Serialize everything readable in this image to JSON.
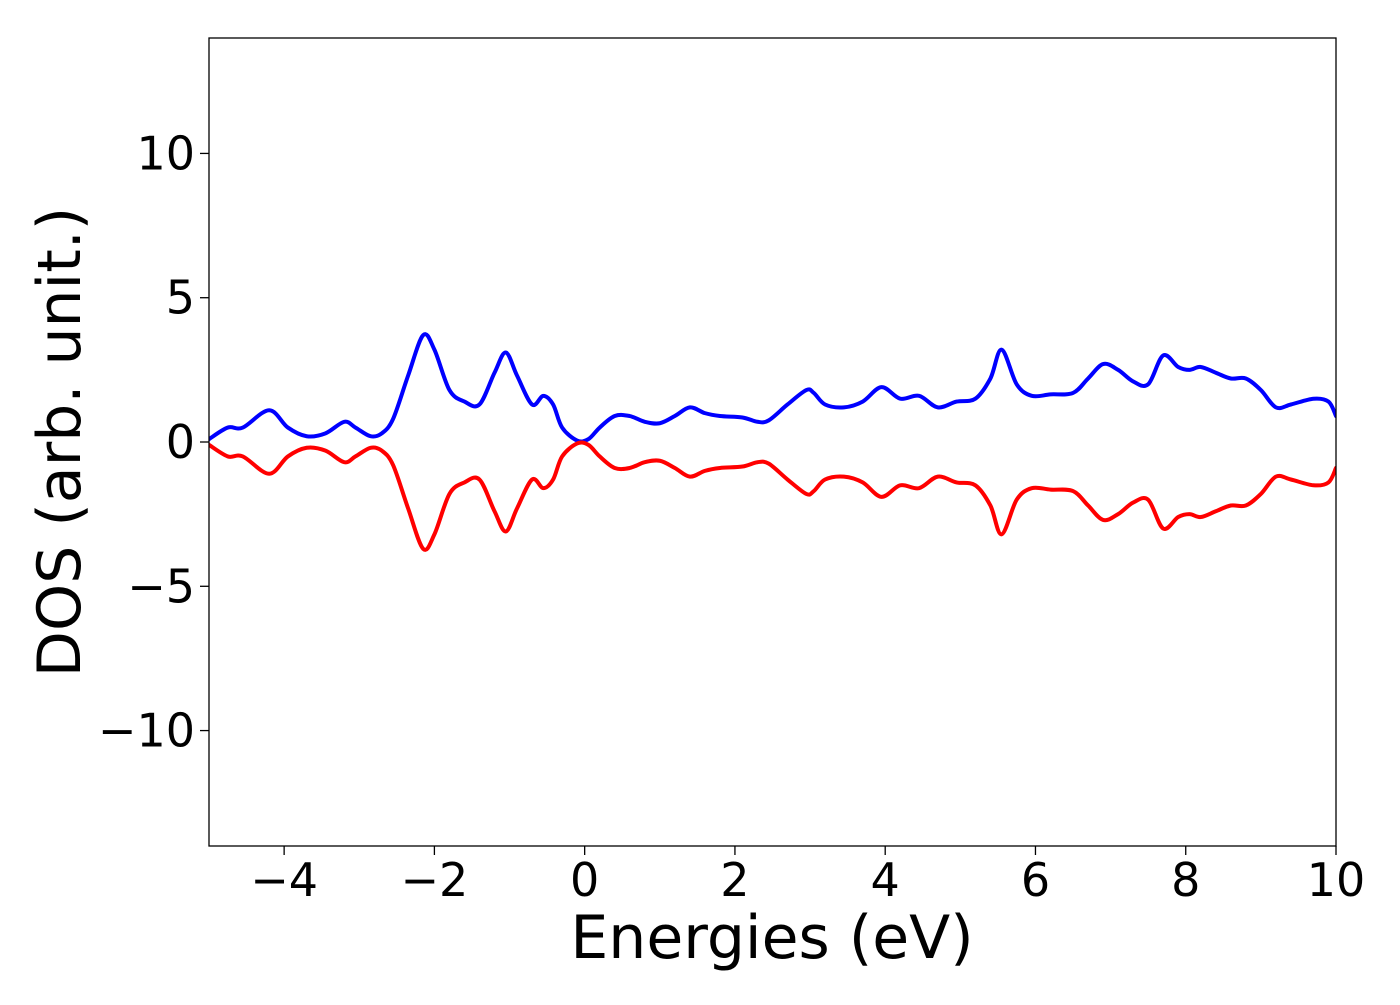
{
  "chart_data": {
    "type": "line",
    "title": "",
    "xlabel": "Energies (eV)",
    "ylabel": "DOS (arb. unit.)",
    "xlim": [
      -5,
      10
    ],
    "ylim": [
      -14,
      14
    ],
    "xticks": [
      -4,
      -2,
      0,
      2,
      4,
      6,
      8,
      10
    ],
    "xtick_labels": [
      "−4",
      "−2",
      "0",
      "2",
      "4",
      "6",
      "8",
      "10"
    ],
    "yticks": [
      -10,
      -5,
      0,
      5,
      10
    ],
    "ytick_labels": [
      "−10",
      "−5",
      "0",
      "5",
      "10"
    ],
    "grid": false,
    "legend": false,
    "series": [
      {
        "color": "#0000ff",
        "x": [
          -5.0,
          -4.75,
          -4.55,
          -4.2,
          -3.95,
          -3.7,
          -3.45,
          -3.2,
          -3.05,
          -2.85,
          -2.7,
          -2.55,
          -2.35,
          -2.15,
          -2.0,
          -1.8,
          -1.6,
          -1.4,
          -1.2,
          -1.05,
          -0.9,
          -0.7,
          -0.55,
          -0.42,
          -0.3,
          -0.1,
          0.05,
          0.2,
          0.4,
          0.6,
          0.8,
          1.0,
          1.2,
          1.4,
          1.6,
          1.8,
          2.1,
          2.3,
          2.45,
          2.7,
          2.95,
          3.05,
          3.2,
          3.45,
          3.7,
          3.95,
          4.2,
          4.45,
          4.7,
          4.95,
          5.2,
          5.4,
          5.55,
          5.75,
          5.95,
          6.2,
          6.5,
          6.7,
          6.9,
          7.1,
          7.3,
          7.5,
          7.7,
          7.9,
          8.05,
          8.2,
          8.4,
          8.6,
          8.8,
          9.0,
          9.2,
          9.4,
          9.7,
          9.9,
          10.0
        ],
        "y": [
          0.1,
          0.5,
          0.5,
          1.1,
          0.5,
          0.2,
          0.3,
          0.7,
          0.5,
          0.2,
          0.3,
          0.8,
          2.3,
          3.7,
          3.2,
          1.8,
          1.4,
          1.3,
          2.4,
          3.1,
          2.3,
          1.3,
          1.6,
          1.3,
          0.5,
          0.05,
          0.1,
          0.5,
          0.9,
          0.9,
          0.7,
          0.65,
          0.9,
          1.2,
          1.0,
          0.9,
          0.85,
          0.7,
          0.75,
          1.3,
          1.8,
          1.7,
          1.3,
          1.2,
          1.4,
          1.9,
          1.5,
          1.6,
          1.2,
          1.4,
          1.5,
          2.2,
          3.2,
          2.0,
          1.6,
          1.65,
          1.7,
          2.2,
          2.7,
          2.5,
          2.1,
          2.0,
          3.0,
          2.6,
          2.5,
          2.6,
          2.4,
          2.2,
          2.2,
          1.8,
          1.2,
          1.3,
          1.5,
          1.4,
          0.9
        ]
      },
      {
        "color": "#ff0000",
        "x": [
          -5.0,
          -4.75,
          -4.55,
          -4.2,
          -3.95,
          -3.7,
          -3.45,
          -3.2,
          -3.05,
          -2.85,
          -2.7,
          -2.55,
          -2.35,
          -2.15,
          -2.0,
          -1.8,
          -1.6,
          -1.4,
          -1.2,
          -1.05,
          -0.9,
          -0.7,
          -0.55,
          -0.42,
          -0.3,
          -0.1,
          0.05,
          0.2,
          0.4,
          0.6,
          0.8,
          1.0,
          1.2,
          1.4,
          1.6,
          1.8,
          2.1,
          2.3,
          2.45,
          2.7,
          2.95,
          3.05,
          3.2,
          3.45,
          3.7,
          3.95,
          4.2,
          4.45,
          4.7,
          4.95,
          5.2,
          5.4,
          5.55,
          5.75,
          5.95,
          6.2,
          6.5,
          6.7,
          6.9,
          7.1,
          7.3,
          7.5,
          7.7,
          7.9,
          8.05,
          8.2,
          8.4,
          8.6,
          8.8,
          9.0,
          9.2,
          9.4,
          9.7,
          9.9,
          10.0
        ],
        "y": [
          -0.1,
          -0.5,
          -0.5,
          -1.1,
          -0.5,
          -0.2,
          -0.3,
          -0.7,
          -0.5,
          -0.2,
          -0.3,
          -0.8,
          -2.3,
          -3.7,
          -3.2,
          -1.8,
          -1.4,
          -1.3,
          -2.4,
          -3.1,
          -2.3,
          -1.3,
          -1.6,
          -1.3,
          -0.5,
          -0.05,
          -0.1,
          -0.5,
          -0.9,
          -0.9,
          -0.7,
          -0.65,
          -0.9,
          -1.2,
          -1.0,
          -0.9,
          -0.85,
          -0.7,
          -0.75,
          -1.3,
          -1.8,
          -1.7,
          -1.3,
          -1.2,
          -1.4,
          -1.9,
          -1.5,
          -1.6,
          -1.2,
          -1.4,
          -1.5,
          -2.2,
          -3.2,
          -2.0,
          -1.6,
          -1.65,
          -1.7,
          -2.2,
          -2.7,
          -2.5,
          -2.1,
          -2.0,
          -3.0,
          -2.6,
          -2.5,
          -2.6,
          -2.4,
          -2.2,
          -2.2,
          -1.8,
          -1.2,
          -1.3,
          -1.5,
          -1.4,
          -0.9
        ]
      }
    ]
  }
}
